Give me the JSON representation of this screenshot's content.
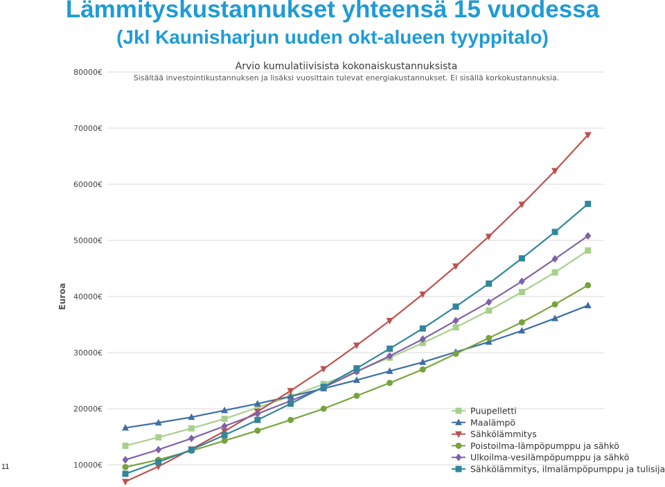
{
  "slide": {
    "title": "Lämmityskustannukset yhteensä 15 vuodessa",
    "subtitle": "(Jkl Kaunisharjun uuden okt-alueen tyyppitalo)",
    "page_number": "11"
  },
  "chart_data": {
    "type": "line",
    "title": "Arvio kumulatiivisista kokonaiskustannuksista",
    "subtitle": "Sisältää investointikustannuksen ja lisäksi vuosittain tulevat energiakustannukset. Ei sisällä korkokustannuksia.",
    "ylabel": "Euroa",
    "xlabel": "",
    "ylim": [
      10000,
      80000
    ],
    "yticks": [
      10000,
      20000,
      30000,
      40000,
      50000,
      60000,
      70000,
      80000
    ],
    "ytick_labels": [
      "10000€",
      "20000€",
      "30000€",
      "40000€",
      "50000€",
      "60000€",
      "70000€",
      "80000€"
    ],
    "x": [
      1,
      2,
      3,
      4,
      5,
      6,
      7,
      8,
      9,
      10,
      11,
      12,
      13,
      14,
      15
    ],
    "grid": true,
    "legend_position": "bottom-right",
    "series": [
      {
        "name": "Puupelletti",
        "color": "#a8d08d",
        "marker": "square",
        "values": [
          13400,
          14900,
          16500,
          18200,
          20200,
          22200,
          24400,
          26700,
          29100,
          31700,
          34500,
          37500,
          40800,
          44300,
          48200
        ]
      },
      {
        "name": "Maalämpö",
        "color": "#3c6ea5",
        "marker": "triangle",
        "values": [
          16600,
          17500,
          18500,
          19700,
          20900,
          22200,
          23600,
          25100,
          26700,
          28300,
          30100,
          31900,
          33900,
          36100,
          38400
        ]
      },
      {
        "name": "Sähkölämmitys",
        "color": "#c0504d",
        "marker": "triangle-down",
        "values": [
          7000,
          9700,
          12800,
          16000,
          19500,
          23200,
          27100,
          31300,
          35700,
          40400,
          45400,
          50700,
          56400,
          62400,
          68800
        ]
      },
      {
        "name": "Poistoilma-lämpöpumppu ja sähkö",
        "color": "#77a33c",
        "marker": "circle",
        "values": [
          9600,
          10900,
          12500,
          14300,
          16100,
          18000,
          20000,
          22300,
          24600,
          27000,
          29800,
          32600,
          35400,
          38600,
          42000
        ]
      },
      {
        "name": "Ulkoilma-vesilämpöpumppu ja sähkö",
        "color": "#7e61a8",
        "marker": "diamond",
        "values": [
          10900,
          12700,
          14700,
          16900,
          19100,
          21400,
          23800,
          26600,
          29400,
          32400,
          35700,
          39000,
          42700,
          46700,
          50800
        ]
      },
      {
        "name": "Sähkölämmitys, ilmalämpöpumppu ja tulisija",
        "color": "#31859c",
        "marker": "square",
        "values": [
          8400,
          10500,
          12700,
          15300,
          18000,
          20900,
          23900,
          27200,
          30700,
          34300,
          38200,
          42300,
          46800,
          51500,
          56500
        ]
      }
    ]
  }
}
